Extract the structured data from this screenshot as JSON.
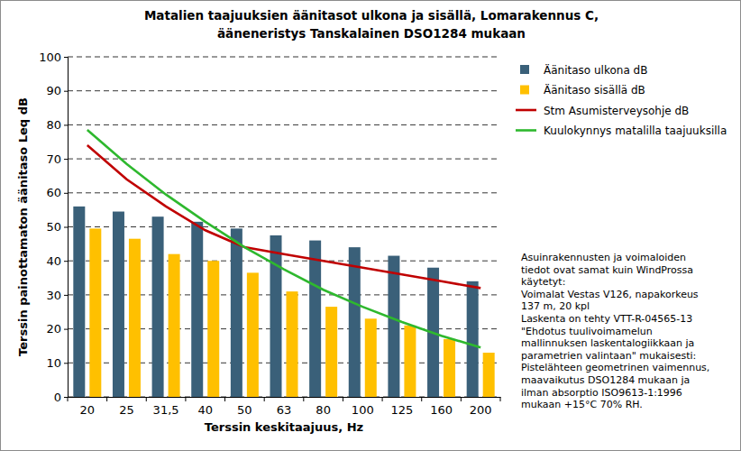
{
  "chart_data": {
    "type": "bar",
    "title": [
      "Matalien taajuuksien äänitasot ulkona ja sisällä, Lomarakennus C,",
      "ääneneristys Tanskalainen DSO1284 mukaan"
    ],
    "x_label": "Terssin keskitaajuus, Hz",
    "y_label": "Terssin painottamaton äänitaso Leq dB",
    "categories": [
      "20",
      "25",
      "31,5",
      "40",
      "50",
      "63",
      "80",
      "100",
      "125",
      "160",
      "200"
    ],
    "series": [
      {
        "name": "Äänitaso ulkona dB",
        "type": "bar",
        "color": "#3A6079",
        "values": [
          56,
          54.5,
          53,
          51.5,
          49.5,
          47.5,
          46,
          44,
          41.5,
          38,
          34
        ]
      },
      {
        "name": "Äänitaso sisällä dB",
        "type": "bar",
        "color": "#FFC000",
        "values": [
          49.5,
          46.5,
          42,
          40,
          36.5,
          31,
          26.5,
          23,
          21,
          17,
          13
        ]
      },
      {
        "name": "Stm Asumisterveysohje dB",
        "type": "line",
        "color": "#C00000",
        "values": [
          74,
          64,
          56,
          49,
          44,
          42,
          40,
          38,
          36,
          34,
          32
        ]
      },
      {
        "name": "Kuulokynnys matalilla taajuuksilla",
        "type": "line",
        "color": "#2EB82E",
        "values": [
          78.5,
          68.5,
          59.5,
          51.5,
          44,
          37.5,
          31.5,
          26.5,
          22,
          18,
          14.5
        ]
      }
    ],
    "ylim": [
      0,
      100
    ],
    "yticks": [
      0,
      10,
      20,
      30,
      40,
      50,
      60,
      70,
      80,
      90,
      100
    ],
    "grid": true,
    "legend": "right",
    "annotation": [
      "Asuinrakennusten ja voimaloiden",
      "tiedot ovat samat kuin WindProssa",
      "käytetyt:",
      "Voimalat Vestas V126, napakorkeus",
      "137 m, 20 kpl",
      "Laskenta on tehty VTT-R-04565-13",
      "\"Ehdotus tuulivoimamelun",
      "mallinnuksen laskentalogiikkaan ja",
      "parametrien valintaan\" mukaisesti:",
      "Pistelähteen geometrinen vaimennus,",
      "maavaikutus DSO1284 mukaan ja",
      "ilman absorptio ISO9613-1:1996",
      "mukaan +15°C 70% RH."
    ]
  }
}
